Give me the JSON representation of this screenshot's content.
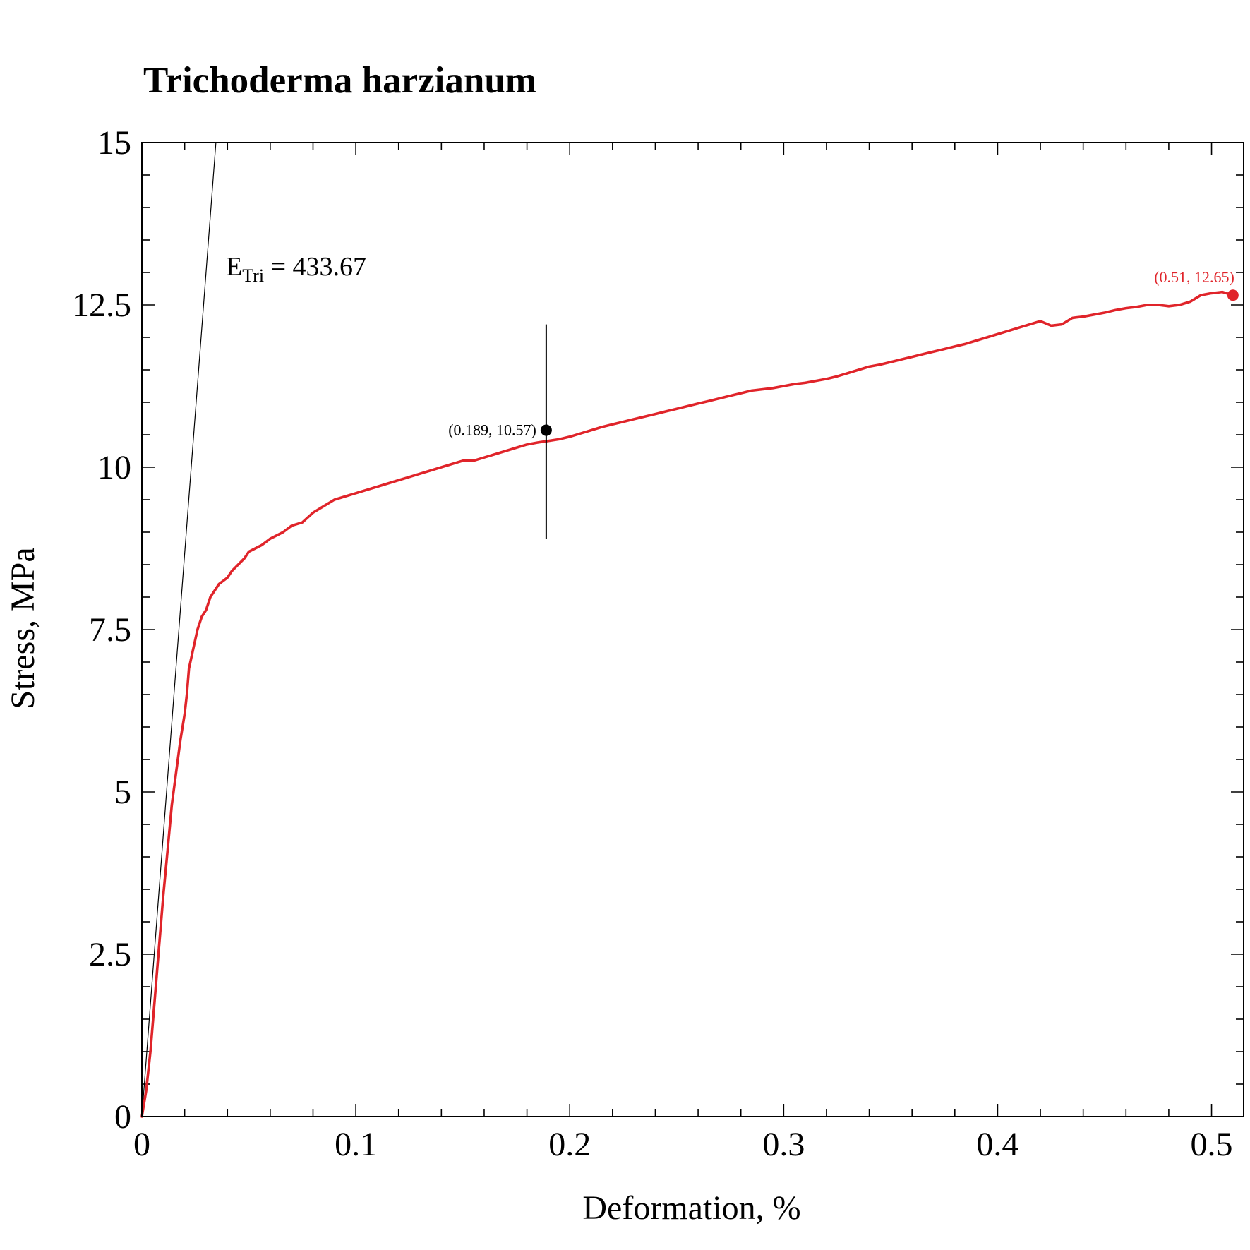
{
  "chart_data": {
    "type": "line",
    "title": "Trichoderma harzianum",
    "xlabel": "Deformation, %",
    "ylabel": "Stress, MPa",
    "xlim": [
      0,
      0.515
    ],
    "ylim": [
      0,
      15
    ],
    "x_ticks": [
      0,
      0.1,
      0.2,
      0.3,
      0.4,
      0.5
    ],
    "x_tick_labels": [
      "0",
      "0.1",
      "0.2",
      "0.3",
      "0.4",
      "0.5"
    ],
    "y_ticks": [
      0,
      2.5,
      5,
      7.5,
      10,
      12.5,
      15
    ],
    "y_tick_labels": [
      "0",
      "2.5",
      "5",
      "7.5",
      "10",
      "12.5",
      "15"
    ],
    "grid": false,
    "series": [
      {
        "color": "#e0242a",
        "x": [
          0,
          0.002,
          0.004,
          0.006,
          0.008,
          0.01,
          0.012,
          0.014,
          0.016,
          0.018,
          0.02,
          0.021,
          0.022,
          0.024,
          0.026,
          0.028,
          0.03,
          0.032,
          0.034,
          0.036,
          0.038,
          0.04,
          0.042,
          0.045,
          0.048,
          0.05,
          0.053,
          0.056,
          0.06,
          0.063,
          0.066,
          0.07,
          0.075,
          0.08,
          0.085,
          0.09,
          0.095,
          0.1,
          0.105,
          0.11,
          0.115,
          0.12,
          0.125,
          0.13,
          0.135,
          0.14,
          0.145,
          0.15,
          0.155,
          0.16,
          0.165,
          0.17,
          0.175,
          0.18,
          0.185,
          0.189,
          0.195,
          0.2,
          0.205,
          0.21,
          0.215,
          0.22,
          0.225,
          0.23,
          0.235,
          0.24,
          0.245,
          0.25,
          0.255,
          0.26,
          0.265,
          0.27,
          0.275,
          0.28,
          0.285,
          0.29,
          0.295,
          0.3,
          0.305,
          0.31,
          0.315,
          0.32,
          0.325,
          0.33,
          0.335,
          0.34,
          0.345,
          0.35,
          0.355,
          0.36,
          0.365,
          0.37,
          0.375,
          0.38,
          0.385,
          0.39,
          0.395,
          0.4,
          0.405,
          0.41,
          0.415,
          0.42,
          0.425,
          0.43,
          0.435,
          0.44,
          0.445,
          0.45,
          0.455,
          0.46,
          0.465,
          0.47,
          0.475,
          0.48,
          0.485,
          0.49,
          0.495,
          0.5,
          0.505,
          0.51
        ],
        "y": [
          0,
          0.4,
          1.0,
          1.8,
          2.6,
          3.4,
          4.1,
          4.8,
          5.3,
          5.8,
          6.2,
          6.5,
          6.9,
          7.2,
          7.5,
          7.7,
          7.8,
          8.0,
          8.1,
          8.2,
          8.25,
          8.3,
          8.4,
          8.5,
          8.6,
          8.7,
          8.75,
          8.8,
          8.9,
          8.95,
          9.0,
          9.1,
          9.15,
          9.3,
          9.4,
          9.5,
          9.55,
          9.6,
          9.65,
          9.7,
          9.75,
          9.8,
          9.85,
          9.9,
          9.95,
          10.0,
          10.05,
          10.1,
          10.1,
          10.15,
          10.2,
          10.25,
          10.3,
          10.35,
          10.38,
          10.4,
          10.43,
          10.47,
          10.52,
          10.57,
          10.62,
          10.66,
          10.7,
          10.74,
          10.78,
          10.82,
          10.86,
          10.9,
          10.94,
          10.98,
          11.02,
          11.06,
          11.1,
          11.14,
          11.18,
          11.2,
          11.22,
          11.25,
          11.28,
          11.3,
          11.33,
          11.36,
          11.4,
          11.45,
          11.5,
          11.55,
          11.58,
          11.62,
          11.66,
          11.7,
          11.74,
          11.78,
          11.82,
          11.86,
          11.9,
          11.95,
          12.0,
          12.05,
          12.1,
          12.15,
          12.2,
          12.25,
          12.18,
          12.2,
          12.3,
          12.32,
          12.35,
          12.38,
          12.42,
          12.45,
          12.47,
          12.5,
          12.5,
          12.48,
          12.5,
          12.55,
          12.65,
          12.68,
          12.7,
          12.65
        ]
      }
    ],
    "fit_line": {
      "x": [
        0,
        0.0346
      ],
      "y": [
        0,
        15
      ]
    },
    "error_bar": {
      "x": 0.189,
      "y": 10.57,
      "low": 8.9,
      "high": 12.2
    },
    "points": [
      {
        "x": 0.189,
        "y": 10.57,
        "label": "(0.189, 10.57)",
        "color": "#000000"
      },
      {
        "x": 0.51,
        "y": 12.65,
        "label": "(0.51, 12.65)",
        "color": "#e0242a"
      }
    ],
    "annotation": {
      "main": "E",
      "sub": "Tri",
      "rest": " = 433.67"
    }
  }
}
